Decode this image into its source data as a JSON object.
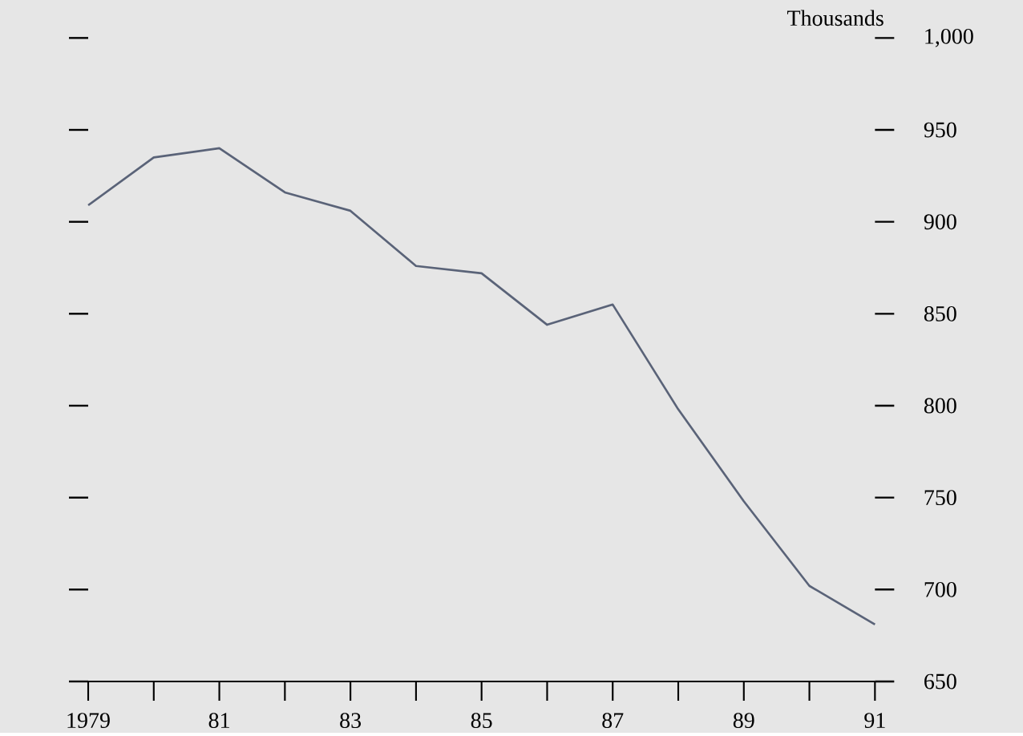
{
  "chart_data": {
    "type": "line",
    "ylabel": "Thousands",
    "x": [
      1979,
      1980,
      1981,
      1982,
      1983,
      1984,
      1985,
      1986,
      1987,
      1988,
      1989,
      1990,
      1991
    ],
    "series": [
      {
        "color": "#5a6378",
        "values": [
          909,
          935,
          940,
          916,
          906,
          876,
          872,
          844,
          855,
          798,
          748,
          702,
          681
        ]
      }
    ],
    "xlim": [
      1979,
      1991
    ],
    "xticks": [
      {
        "value": 1979,
        "label": "1979"
      },
      {
        "value": 1980,
        "label": null
      },
      {
        "value": 1981,
        "label": "81"
      },
      {
        "value": 1982,
        "label": null
      },
      {
        "value": 1983,
        "label": "83"
      },
      {
        "value": 1984,
        "label": null
      },
      {
        "value": 1985,
        "label": "85"
      },
      {
        "value": 1986,
        "label": null
      },
      {
        "value": 1987,
        "label": "87"
      },
      {
        "value": 1988,
        "label": null
      },
      {
        "value": 1989,
        "label": "89"
      },
      {
        "value": 1990,
        "label": null
      },
      {
        "value": 1991,
        "label": "91"
      }
    ],
    "ylim": [
      650,
      1000
    ],
    "yticks": [
      650,
      700,
      750,
      800,
      850,
      900,
      950,
      {
        "value": 1000,
        "label": "1,000"
      }
    ],
    "grid": false,
    "marker": "none",
    "line_style": "solid"
  }
}
